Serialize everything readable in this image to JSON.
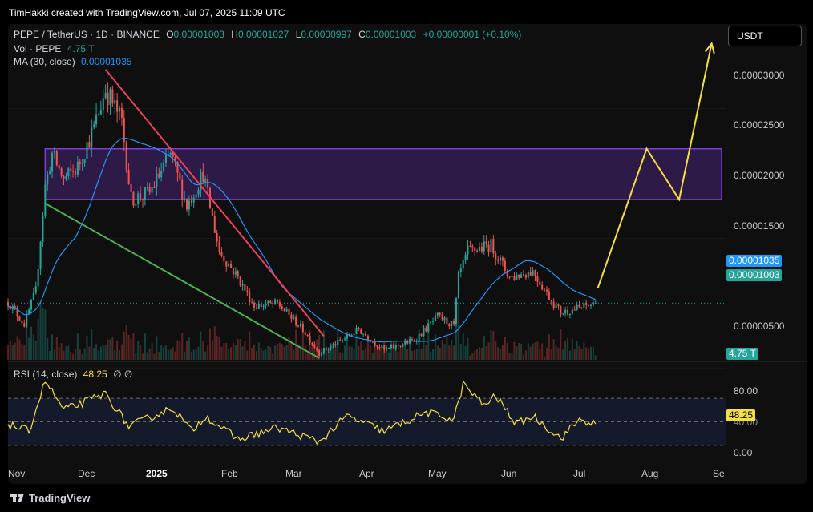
{
  "header": {
    "attribution": "TimHakki created with TradingView.com, Jul 07, 2025 11:09 UTC"
  },
  "legend": {
    "symbol": "PEPE / TetherUS · 1D · BINANCE",
    "o_label": "O",
    "o_value": "0.00001003",
    "h_label": "H",
    "h_value": "0.00001027",
    "l_label": "L",
    "l_value": "0.00000997",
    "c_label": "C",
    "c_value": "0.00001003",
    "change": "+0.00000001 (+0.10%)",
    "vol_label": "Vol · PEPE",
    "vol_value": "4.75 T",
    "ma_label": "MA (30, close)",
    "ma_value": "0.00001035",
    "rsi_label": "RSI (14, close)",
    "rsi_value": "48.25",
    "rsi_extra": "∅ ∅"
  },
  "currency_button": "USDT",
  "price_axis": {
    "ticks": [
      "0.00003000",
      "0.00002500",
      "0.00002000",
      "0.00001500",
      "0.00000500"
    ],
    "ma_tag": "0.00001035",
    "last_tag": "0.00001003",
    "volume_tag": "4.75 T"
  },
  "rsi_axis": {
    "ticks": [
      "80.00",
      "0.00"
    ],
    "hidden_tick": "40.00",
    "rsi_tag": "48.25"
  },
  "time_axis": [
    "Nov",
    "Dec",
    "2025",
    "Feb",
    "Mar",
    "Apr",
    "May",
    "Jun",
    "Jul",
    "Aug",
    "Se"
  ],
  "footer": {
    "brand": "TradingView"
  },
  "colors": {
    "up": "#26a69a",
    "down": "#ef5350",
    "ma": "#2196f3",
    "rsi": "#f5e044",
    "zone_fill": "#2e1a47",
    "zone_border": "#7b3fd6",
    "resistance": "#ef3f5a",
    "support": "#4caf50",
    "projection": "#f5e044",
    "background": "#0f0f0f"
  },
  "chart_data": {
    "type": "candlestick",
    "symbol": "PEPE / TetherUS",
    "exchange": "BINANCE",
    "interval": "1D",
    "x_range": [
      "2024-10-27",
      "2025-09-01"
    ],
    "y_range": [
      4.5e-06,
      3.15e-05
    ],
    "anchor_points": [
      {
        "date": "2024-10-27",
        "price": 1.01e-05
      },
      {
        "date": "2024-11-03",
        "price": 8.4e-06
      },
      {
        "date": "2024-11-08",
        "price": 1.1e-05
      },
      {
        "date": "2024-11-12",
        "price": 1.9e-05
      },
      {
        "date": "2024-11-15",
        "price": 2.15e-05
      },
      {
        "date": "2024-11-20",
        "price": 1.95e-05
      },
      {
        "date": "2024-11-26",
        "price": 2.05e-05
      },
      {
        "date": "2024-12-03",
        "price": 2.35e-05
      },
      {
        "date": "2024-12-08",
        "price": 2.65e-05
      },
      {
        "date": "2024-12-15",
        "price": 2.4e-05
      },
      {
        "date": "2024-12-19",
        "price": 1.8e-05
      },
      {
        "date": "2024-12-27",
        "price": 1.85e-05
      },
      {
        "date": "2025-01-05",
        "price": 2.15e-05
      },
      {
        "date": "2025-01-12",
        "price": 1.75e-05
      },
      {
        "date": "2025-01-19",
        "price": 2e-05
      },
      {
        "date": "2025-01-26",
        "price": 1.4e-05
      },
      {
        "date": "2025-02-03",
        "price": 1.2e-05
      },
      {
        "date": "2025-02-10",
        "price": 9.8e-06
      },
      {
        "date": "2025-02-20",
        "price": 1e-05
      },
      {
        "date": "2025-03-03",
        "price": 8e-06
      },
      {
        "date": "2025-03-10",
        "price": 6.2e-06
      },
      {
        "date": "2025-03-18",
        "price": 7e-06
      },
      {
        "date": "2025-03-27",
        "price": 8e-06
      },
      {
        "date": "2025-04-07",
        "price": 6.4e-06
      },
      {
        "date": "2025-04-20",
        "price": 7.2e-06
      },
      {
        "date": "2025-04-30",
        "price": 9e-06
      },
      {
        "date": "2025-05-07",
        "price": 8.3e-06
      },
      {
        "date": "2025-05-09",
        "price": 1.2e-05
      },
      {
        "date": "2025-05-13",
        "price": 1.4e-05
      },
      {
        "date": "2025-05-23",
        "price": 1.45e-05
      },
      {
        "date": "2025-05-31",
        "price": 1.2e-05
      },
      {
        "date": "2025-06-10",
        "price": 1.25e-05
      },
      {
        "date": "2025-06-17",
        "price": 1.05e-05
      },
      {
        "date": "2025-06-22",
        "price": 9.3e-06
      },
      {
        "date": "2025-07-01",
        "price": 9.7e-06
      },
      {
        "date": "2025-07-07",
        "price": 1e-05
      }
    ],
    "last": {
      "open": 1.003e-05,
      "high": 1.027e-05,
      "low": 9.97e-06,
      "close": 1.003e-05
    },
    "ma30_last": 1.035e-05,
    "volume_last": "4.75 T",
    "rsi": {
      "period": 14,
      "last": 48.25,
      "bands": [
        70,
        50,
        30
      ],
      "y_range": [
        0,
        100
      ],
      "anchor_points": [
        {
          "date": "2024-10-27",
          "value": 48
        },
        {
          "date": "2024-11-05",
          "value": 42
        },
        {
          "date": "2024-11-12",
          "value": 85
        },
        {
          "date": "2024-11-20",
          "value": 60
        },
        {
          "date": "2024-11-28",
          "value": 66
        },
        {
          "date": "2024-12-08",
          "value": 74
        },
        {
          "date": "2024-12-18",
          "value": 46
        },
        {
          "date": "2025-01-06",
          "value": 62
        },
        {
          "date": "2025-01-14",
          "value": 42
        },
        {
          "date": "2025-01-20",
          "value": 55
        },
        {
          "date": "2025-02-03",
          "value": 35
        },
        {
          "date": "2025-02-20",
          "value": 45
        },
        {
          "date": "2025-03-10",
          "value": 33
        },
        {
          "date": "2025-03-22",
          "value": 55
        },
        {
          "date": "2025-04-07",
          "value": 42
        },
        {
          "date": "2025-04-25",
          "value": 58
        },
        {
          "date": "2025-05-07",
          "value": 52
        },
        {
          "date": "2025-05-11",
          "value": 82
        },
        {
          "date": "2025-05-20",
          "value": 64
        },
        {
          "date": "2025-05-25",
          "value": 72
        },
        {
          "date": "2025-06-03",
          "value": 48
        },
        {
          "date": "2025-06-10",
          "value": 55
        },
        {
          "date": "2025-06-22",
          "value": 36
        },
        {
          "date": "2025-06-30",
          "value": 52
        },
        {
          "date": "2025-07-07",
          "value": 48.25
        }
      ]
    },
    "drawings": {
      "resistance_line": [
        {
          "date": "2024-12-08",
          "price": 2.8e-05
        },
        {
          "date": "2025-03-12",
          "price": 7.5e-06
        }
      ],
      "support_line": [
        {
          "date": "2024-11-12",
          "price": 1.77e-05
        },
        {
          "date": "2025-03-10",
          "price": 5.8e-06
        }
      ],
      "zone": {
        "from": "2024-11-12",
        "to": "2025-09-01",
        "low": 1.8e-05,
        "high": 2.19e-05
      },
      "projection": [
        {
          "date": "2025-07-08",
          "price": 1.12e-05
        },
        {
          "date": "2025-07-29",
          "price": 2.19e-05
        },
        {
          "date": "2025-08-12",
          "price": 1.8e-05
        },
        {
          "date": "2025-08-26",
          "price": 3e-05
        }
      ]
    }
  }
}
